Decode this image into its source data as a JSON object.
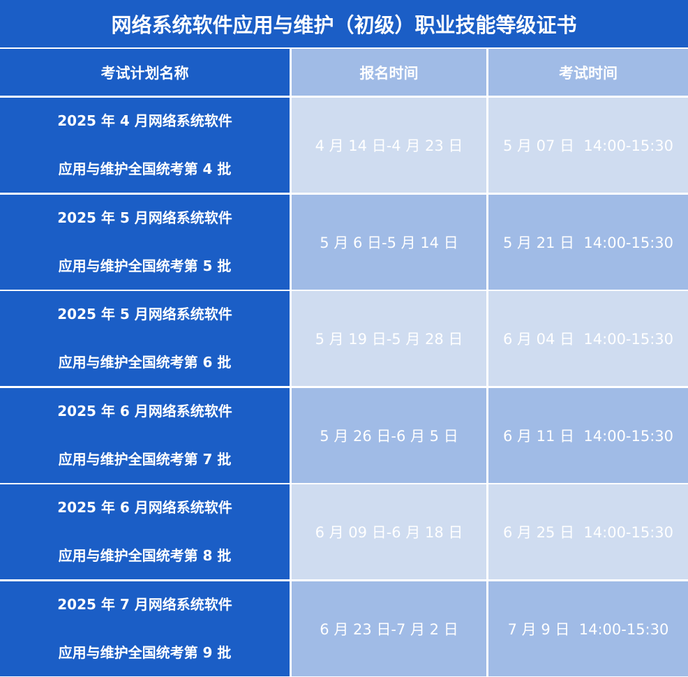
{
  "title": "网络系统软件应用与维护（初级）职业技能等级证书",
  "headers": {
    "plan": "考试计划名称",
    "registration": "报名时间",
    "exam": "考试时间"
  },
  "colors": {
    "dark_blue": "#1b5ec6",
    "light_cell": "#cfdcf0",
    "mid_cell": "#a0bbe6"
  },
  "rows": [
    {
      "plan_line1": "2025 年 4 月网络系统软件",
      "plan_line2": "应用与维护全国统考第 4 批",
      "registration": "4 月 14 日-4 月 23 日",
      "exam": "5 月 07 日  14:00-15:30"
    },
    {
      "plan_line1": "2025 年 5 月网络系统软件",
      "plan_line2": "应用与维护全国统考第 5 批",
      "registration": "5 月 6 日-5 月 14 日",
      "exam": "5 月 21 日  14:00-15:30"
    },
    {
      "plan_line1": "2025 年 5 月网络系统软件",
      "plan_line2": "应用与维护全国统考第 6 批",
      "registration": "5 月 19 日-5 月 28 日",
      "exam": "6 月 04 日  14:00-15:30"
    },
    {
      "plan_line1": "2025 年 6 月网络系统软件",
      "plan_line2": "应用与维护全国统考第 7 批",
      "registration": "5 月 26 日-6 月 5 日",
      "exam": "6 月 11 日  14:00-15:30"
    },
    {
      "plan_line1": "2025 年 6 月网络系统软件",
      "plan_line2": "应用与维护全国统考第 8 批",
      "registration": "6 月 09 日-6 月 18 日",
      "exam": "6 月 25 日  14:00-15:30"
    },
    {
      "plan_line1": "2025 年 7 月网络系统软件",
      "plan_line2": "应用与维护全国统考第 9 批",
      "registration": "6 月 23 日-7 月 2 日",
      "exam": "7 月 9 日  14:00-15:30"
    }
  ]
}
